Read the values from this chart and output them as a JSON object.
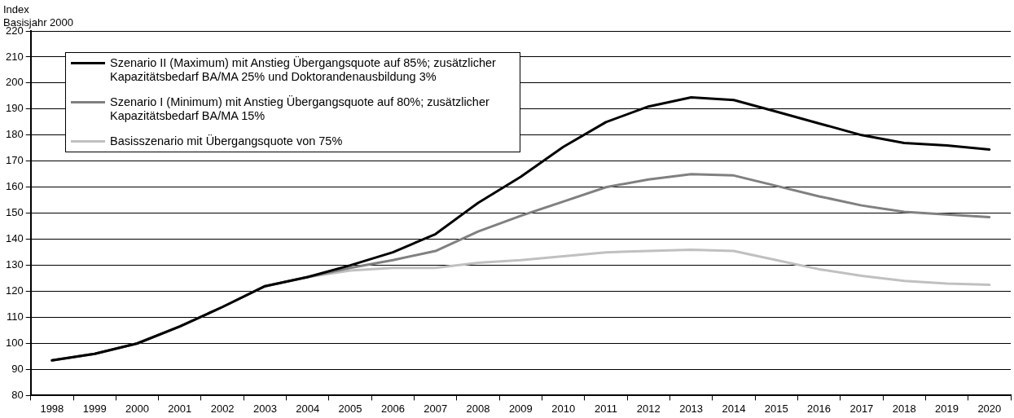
{
  "chart_data": {
    "type": "line",
    "ylabel": "Index\nBasisjahr 2000",
    "categories": [
      "1998",
      "1999",
      "2000",
      "2001",
      "2002",
      "2003",
      "2004",
      "2005",
      "2006",
      "2007",
      "2008",
      "2009",
      "2010",
      "2011",
      "2012",
      "2013",
      "2014",
      "2015",
      "2016",
      "2017",
      "2018",
      "2019",
      "2020"
    ],
    "series": [
      {
        "name": "Szenario II (Maximum) mit Anstieg Übergangsquote auf 85%; zusätzlicher Kapazitätsbedarf BA/MA 25% und Doktorandenausbildung 3%",
        "color": "#000000",
        "values": [
          93.5,
          96,
          100,
          106.5,
          114,
          122,
          125.5,
          130,
          135,
          142,
          154,
          164,
          175.5,
          185,
          191,
          194.5,
          193.5,
          189,
          184.5,
          180,
          177,
          176,
          174.5
        ]
      },
      {
        "name": "Szenario I (Minimum) mit Anstieg Übergangsquote auf 80%; zusätzlicher Kapazitätsbedarf BA/MA 15%",
        "color": "#808080",
        "values": [
          93.5,
          96,
          100,
          106.5,
          114,
          122,
          125.5,
          129,
          132,
          135.5,
          143,
          149,
          154.5,
          160,
          163,
          165,
          164.5,
          160.5,
          156.5,
          153,
          150.5,
          149.5,
          148.5
        ]
      },
      {
        "name": "Basisszenario mit Übergangsquote von 75%",
        "color": "#c0c0c0",
        "values": [
          93.5,
          96,
          100,
          106.5,
          114,
          122,
          125.5,
          128,
          129,
          129,
          131,
          132,
          133.5,
          135,
          135.5,
          136,
          135.5,
          132,
          128.5,
          126,
          124,
          123,
          122.5
        ]
      }
    ],
    "ylim": [
      80,
      220
    ],
    "yticks": [
      80,
      90,
      100,
      110,
      120,
      130,
      140,
      150,
      160,
      170,
      180,
      190,
      200,
      210,
      220
    ],
    "grid": "y",
    "legend": "top left",
    "marker": "none",
    "line_style": "solid"
  }
}
